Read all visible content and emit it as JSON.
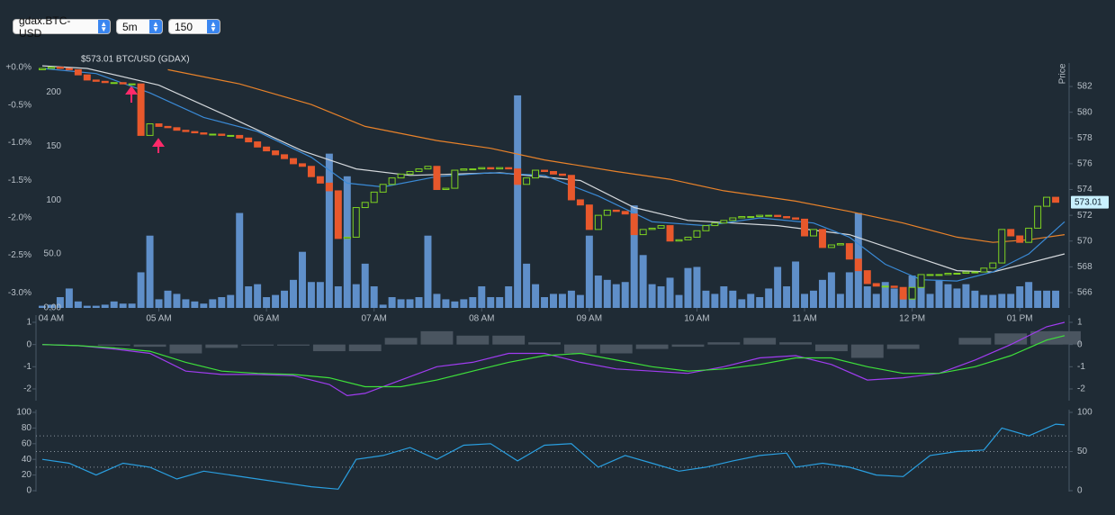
{
  "controls": {
    "selects": [
      "gdax.BTC-USD",
      "5m",
      "150"
    ]
  },
  "chart_data": [
    {
      "type": "candlestick",
      "title": "$573.01 BTC/USD (GDAX)",
      "y_label": "Price",
      "xlim": [
        -0.7,
        114.5
      ],
      "xticks": [
        {
          "value": 1,
          "label": "04 AM"
        },
        {
          "value": 13,
          "label": "05 AM"
        },
        {
          "value": 25,
          "label": "06 AM"
        },
        {
          "value": 37,
          "label": "07 AM"
        },
        {
          "value": 49,
          "label": "08 AM"
        },
        {
          "value": 61,
          "label": "09 AM"
        },
        {
          "value": 73,
          "label": "10 AM"
        },
        {
          "value": 85,
          "label": "11 AM"
        },
        {
          "value": 97,
          "label": "12 PM"
        },
        {
          "value": 109,
          "label": "01 PM"
        }
      ],
      "ylim": [
        564.81,
        583.82
      ],
      "yticks": [
        566,
        568,
        570,
        572,
        574,
        576,
        578,
        580,
        582
      ],
      "y2lim": [
        -3.2,
        0.06
      ],
      "y2ticks": [
        {
          "value": 0,
          "label": "+0.0%"
        },
        {
          "value": -0.5,
          "label": "-0.5%"
        },
        {
          "value": -1,
          "label": "-1.0%"
        },
        {
          "value": -1.5,
          "label": "-1.5%"
        },
        {
          "value": -2,
          "label": "-2.0%"
        },
        {
          "value": -2.5,
          "label": "-2.5%"
        },
        {
          "value": -3,
          "label": "-3.0%"
        }
      ],
      "up_color": "#7ed321",
      "down_color": "#e8582c",
      "candles": {
        "open": [
          583.3,
          583.4,
          583.5,
          583.4,
          583.3,
          582.9,
          582.5,
          582.4,
          582.3,
          582.3,
          582.2,
          582.2,
          578.2,
          579.1,
          578.9,
          578.8,
          578.6,
          578.5,
          578.4,
          578.3,
          578.3,
          578.2,
          578.2,
          578.0,
          577.7,
          577.3,
          577.0,
          576.7,
          576.4,
          576.0,
          575.8,
          575.0,
          574.5,
          573.9,
          570.2,
          570.3,
          572.6,
          573.0,
          573.8,
          574.4,
          574.9,
          575.2,
          575.4,
          575.6,
          575.8,
          574.0,
          574.1,
          575.5,
          575.6,
          575.6,
          575.7,
          575.6,
          575.7,
          575.6,
          574.4,
          574.9,
          575.5,
          575.4,
          575.2,
          575.1,
          573.2,
          572.8,
          570.9,
          572.0,
          572.4,
          572.3,
          572.1,
          570.5,
          570.9,
          571.0,
          571.2,
          570.0,
          570.1,
          570.3,
          570.8,
          571.2,
          571.4,
          571.6,
          571.8,
          571.9,
          571.9,
          572.0,
          572.0,
          571.9,
          571.8,
          571.7,
          570.4,
          570.9,
          569.5,
          569.7,
          569.8,
          568.6,
          567.7,
          566.7,
          566.5,
          566.5,
          566.4,
          565.5,
          566.4,
          567.4,
          567.4,
          567.4,
          567.5,
          567.5,
          567.6,
          567.6,
          567.9,
          568.3,
          570.9,
          570.4,
          569.9,
          571.0,
          572.7,
          573.4
        ],
        "close": [
          583.4,
          583.5,
          583.4,
          583.3,
          582.9,
          582.5,
          582.4,
          582.3,
          582.3,
          582.2,
          582.2,
          578.2,
          579.1,
          578.9,
          578.8,
          578.6,
          578.5,
          578.4,
          578.3,
          578.3,
          578.2,
          578.2,
          578.0,
          577.7,
          577.3,
          577.0,
          576.7,
          576.4,
          576.0,
          575.8,
          575.0,
          574.5,
          573.9,
          570.2,
          570.3,
          572.6,
          573.0,
          573.8,
          574.4,
          574.9,
          575.2,
          575.4,
          575.6,
          575.8,
          574.0,
          574.1,
          575.5,
          575.6,
          575.6,
          575.7,
          575.6,
          575.7,
          575.6,
          574.4,
          574.9,
          575.5,
          575.4,
          575.2,
          575.1,
          573.2,
          572.8,
          570.9,
          572.0,
          572.4,
          572.3,
          572.1,
          570.5,
          570.9,
          571.0,
          571.2,
          570.0,
          570.1,
          570.3,
          570.8,
          571.2,
          571.4,
          571.6,
          571.8,
          571.9,
          571.9,
          572.0,
          572.0,
          571.9,
          571.8,
          571.7,
          570.4,
          570.9,
          569.5,
          569.7,
          569.8,
          568.6,
          567.7,
          566.7,
          566.5,
          566.5,
          566.4,
          565.5,
          566.4,
          567.4,
          567.4,
          567.4,
          567.5,
          567.5,
          567.6,
          567.6,
          567.9,
          568.3,
          570.9,
          570.4,
          569.9,
          571.0,
          572.7,
          573.4,
          573.01
        ]
      },
      "volume": {
        "color": "#5f8fc9",
        "ylim": [
          0,
          227
        ],
        "yticks": [
          {
            "value": 0,
            "label": "0.00"
          },
          {
            "value": 50,
            "label": "50.0"
          },
          100,
          150,
          200
        ],
        "values": [
          2,
          3,
          10,
          18,
          6,
          2,
          2,
          3,
          6,
          4,
          4,
          33,
          67,
          8,
          16,
          13,
          8,
          6,
          4,
          8,
          10,
          12,
          88,
          20,
          22,
          10,
          12,
          16,
          26,
          52,
          24,
          24,
          143,
          20,
          122,
          22,
          41,
          20,
          3,
          10,
          8,
          8,
          10,
          67,
          13,
          8,
          6,
          8,
          10,
          20,
          10,
          10,
          20,
          197,
          41,
          22,
          10,
          13,
          13,
          16,
          12,
          67,
          30,
          26,
          22,
          24,
          95,
          49,
          22,
          20,
          28,
          12,
          37,
          38,
          16,
          13,
          20,
          16,
          8,
          13,
          10,
          18,
          38,
          20,
          43,
          13,
          16,
          26,
          33,
          13,
          33,
          88,
          20,
          13,
          24,
          18,
          13,
          30,
          20,
          13,
          26,
          22,
          18,
          22,
          16,
          12,
          12,
          13,
          13,
          20,
          24,
          16,
          16,
          16
        ]
      },
      "series": [
        {
          "color": "#e8822a",
          "x": [
            14,
            22,
            30,
            36,
            44,
            50,
            56,
            64,
            70,
            76,
            84,
            90,
            96,
            102,
            106,
            110,
            114
          ],
          "values": [
            583.3,
            582.2,
            580.6,
            578.9,
            577.8,
            577.2,
            576.3,
            575.4,
            574.8,
            573.9,
            573.1,
            572.3,
            571.4,
            570.3,
            569.9,
            570.1,
            570.5
          ]
        },
        {
          "color": "#d4d8dc",
          "x": [
            0,
            5,
            13,
            21,
            29,
            35,
            41,
            51,
            60,
            66,
            72,
            82,
            90,
            96,
            102,
            106,
            114
          ],
          "values": [
            583.6,
            583.4,
            582.1,
            579.6,
            577.0,
            575.6,
            575.1,
            575.3,
            574.7,
            572.6,
            571.6,
            571.2,
            570.5,
            569.1,
            567.7,
            567.6,
            569.0
          ]
        },
        {
          "color": "#3a8ad6",
          "x": [
            0,
            6,
            12,
            18,
            24,
            30,
            34,
            38,
            44,
            50,
            56,
            62,
            68,
            74,
            80,
            86,
            90,
            94,
            98,
            102,
            106,
            110,
            114
          ],
          "values": [
            583.4,
            583.0,
            581.5,
            579.6,
            578.5,
            576.5,
            574.5,
            574.2,
            575.0,
            575.3,
            575.1,
            573.5,
            571.5,
            571.2,
            571.8,
            571.4,
            570.3,
            568.2,
            567.0,
            566.9,
            567.6,
            569.0,
            571.5
          ]
        }
      ]
    },
    {
      "type": "macd",
      "xlim": [
        -0.7,
        114.5
      ],
      "ylim": [
        -2.5,
        1.3
      ],
      "yticks": [
        -2,
        -1,
        0,
        1
      ],
      "histogram": {
        "color": "#4a5560",
        "x": [
          0,
          4,
          8,
          12,
          16,
          20,
          24,
          28,
          32,
          36,
          40,
          44,
          48,
          52,
          56,
          60,
          64,
          68,
          72,
          76,
          80,
          84,
          88,
          92,
          96,
          100,
          104,
          108,
          112,
          114
        ],
        "values": [
          0,
          0,
          -0.05,
          -0.1,
          -0.4,
          -0.15,
          -0.05,
          -0.05,
          -0.3,
          -0.3,
          0.3,
          0.6,
          0.4,
          0.4,
          0.1,
          -0.4,
          -0.4,
          -0.2,
          -0.1,
          0.1,
          0.3,
          0.1,
          -0.3,
          -0.6,
          -0.2,
          0,
          0.3,
          0.5,
          0.6,
          0.6
        ]
      },
      "series": [
        {
          "color": "#a03cf0",
          "x": [
            0,
            4,
            8,
            12,
            16,
            20,
            24,
            28,
            32,
            34,
            36,
            40,
            44,
            48,
            52,
            56,
            60,
            64,
            68,
            72,
            76,
            80,
            84,
            88,
            92,
            96,
            100,
            104,
            108,
            112,
            114
          ],
          "values": [
            0,
            -0.05,
            -0.2,
            -0.4,
            -1.2,
            -1.35,
            -1.35,
            -1.4,
            -1.8,
            -2.3,
            -2.2,
            -1.6,
            -1.0,
            -0.8,
            -0.4,
            -0.4,
            -0.8,
            -1.1,
            -1.2,
            -1.3,
            -1.0,
            -0.6,
            -0.5,
            -0.9,
            -1.6,
            -1.5,
            -1.3,
            -0.7,
            0.0,
            0.8,
            1.0
          ]
        },
        {
          "color": "#3ee03a",
          "x": [
            0,
            4,
            8,
            12,
            16,
            20,
            24,
            28,
            32,
            36,
            40,
            44,
            48,
            52,
            56,
            60,
            64,
            68,
            72,
            76,
            80,
            84,
            88,
            92,
            96,
            100,
            104,
            108,
            112,
            114
          ],
          "values": [
            0,
            -0.05,
            -0.15,
            -0.3,
            -0.8,
            -1.2,
            -1.3,
            -1.35,
            -1.5,
            -1.9,
            -1.9,
            -1.6,
            -1.2,
            -0.8,
            -0.5,
            -0.4,
            -0.7,
            -1.0,
            -1.2,
            -1.1,
            -0.9,
            -0.6,
            -0.6,
            -1.0,
            -1.3,
            -1.3,
            -1.0,
            -0.5,
            0.2,
            0.4
          ]
        }
      ]
    },
    {
      "type": "rsi",
      "xlim": [
        -0.7,
        114.5
      ],
      "ylim": [
        0,
        100
      ],
      "yticks": [
        0,
        20,
        40,
        60,
        80,
        100
      ],
      "y2ticks": [
        0,
        50,
        100
      ],
      "levels": [
        30,
        50,
        70
      ],
      "series": [
        {
          "color": "#2a9fe0",
          "x": [
            0,
            3,
            6,
            9,
            12,
            15,
            18,
            21,
            24,
            27,
            30,
            33,
            35,
            38,
            41,
            44,
            47,
            50,
            53,
            56,
            59,
            62,
            65,
            68,
            71,
            74,
            77,
            80,
            83,
            84,
            87,
            90,
            93,
            96,
            99,
            102,
            105,
            107,
            110,
            113,
            114
          ],
          "values": [
            40,
            35,
            20,
            35,
            30,
            15,
            25,
            20,
            15,
            10,
            5,
            2,
            40,
            45,
            55,
            40,
            58,
            60,
            38,
            58,
            60,
            30,
            45,
            35,
            25,
            30,
            38,
            45,
            48,
            30,
            35,
            30,
            20,
            18,
            45,
            50,
            52,
            80,
            70,
            85,
            84
          ]
        }
      ]
    }
  ]
}
